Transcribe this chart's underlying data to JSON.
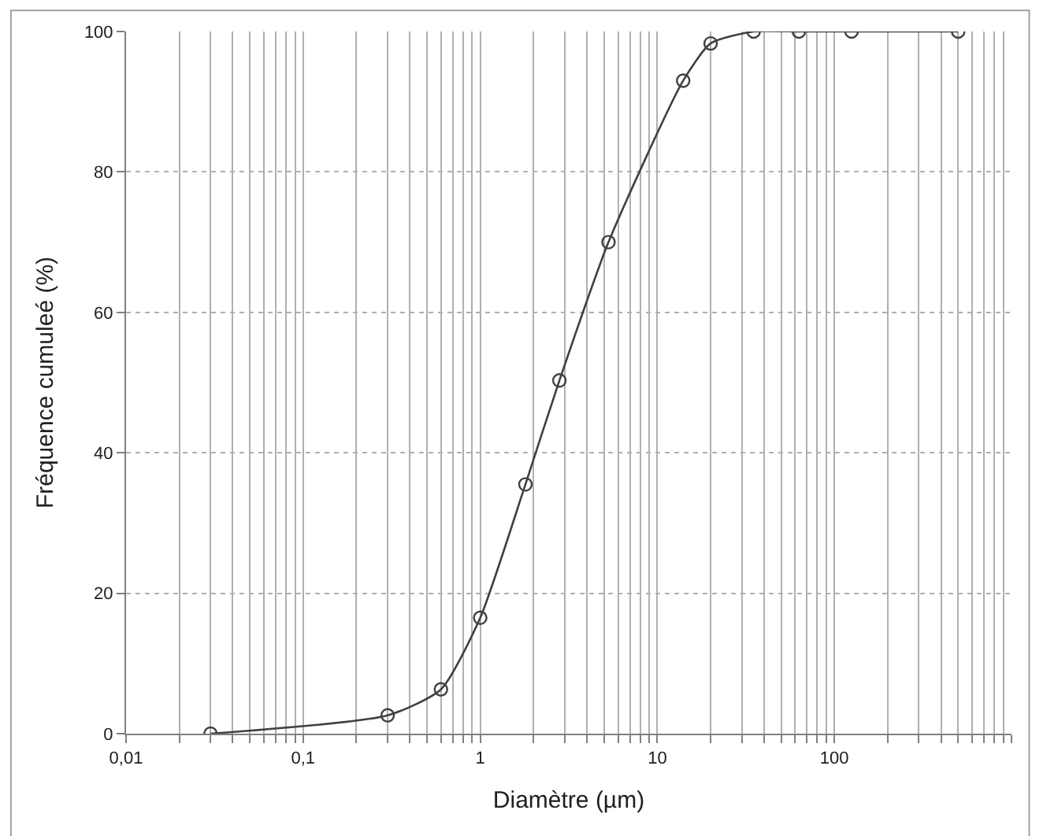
{
  "chart_data": {
    "type": "line",
    "xlabel": "Diamètre (µm)",
    "ylabel": "Fréquence cumuleé (%)",
    "x": [
      0.03,
      0.3,
      0.6,
      1,
      1.8,
      2.8,
      5.3,
      14,
      20,
      35,
      63,
      125,
      500
    ],
    "series": [
      {
        "color": "#404040",
        "values": [
          0,
          2.6,
          6.3,
          16.5,
          35.5,
          50.3,
          70,
          93,
          98.3,
          100,
          100,
          100,
          100
        ]
      }
    ],
    "log": "x",
    "xlim": [
      0.01,
      1000
    ],
    "ylim": [
      0,
      100
    ],
    "xticks": [
      {
        "value": 0.01,
        "label": "0,01"
      },
      {
        "value": 0.02,
        "label": null
      },
      {
        "value": 0.03,
        "label": null
      },
      {
        "value": 0.04,
        "label": null
      },
      {
        "value": 0.05,
        "label": null
      },
      {
        "value": 0.06,
        "label": null
      },
      {
        "value": 0.07,
        "label": null
      },
      {
        "value": 0.08,
        "label": null
      },
      {
        "value": 0.09,
        "label": null
      },
      {
        "value": 0.1,
        "label": "0,1"
      },
      {
        "value": 0.2,
        "label": null
      },
      {
        "value": 0.3,
        "label": null
      },
      {
        "value": 0.4,
        "label": null
      },
      {
        "value": 0.5,
        "label": null
      },
      {
        "value": 0.6,
        "label": null
      },
      {
        "value": 0.7,
        "label": null
      },
      {
        "value": 0.8,
        "label": null
      },
      {
        "value": 0.9,
        "label": null
      },
      {
        "value": 1,
        "label": "1"
      },
      {
        "value": 2,
        "label": null
      },
      {
        "value": 3,
        "label": null
      },
      {
        "value": 4,
        "label": null
      },
      {
        "value": 5,
        "label": null
      },
      {
        "value": 6,
        "label": null
      },
      {
        "value": 7,
        "label": null
      },
      {
        "value": 8,
        "label": null
      },
      {
        "value": 9,
        "label": null
      },
      {
        "value": 10,
        "label": "10"
      },
      {
        "value": 20,
        "label": null
      },
      {
        "value": 30,
        "label": null
      },
      {
        "value": 40,
        "label": null
      },
      {
        "value": 50,
        "label": null
      },
      {
        "value": 60,
        "label": null
      },
      {
        "value": 70,
        "label": null
      },
      {
        "value": 80,
        "label": null
      },
      {
        "value": 90,
        "label": null
      },
      {
        "value": 100,
        "label": "100"
      },
      {
        "value": 200,
        "label": null
      },
      {
        "value": 300,
        "label": null
      },
      {
        "value": 400,
        "label": null
      },
      {
        "value": 500,
        "label": null
      },
      {
        "value": 600,
        "label": null
      },
      {
        "value": 700,
        "label": null
      },
      {
        "value": 800,
        "label": null
      },
      {
        "value": 900,
        "label": null
      },
      {
        "value": 1000,
        "label": null
      }
    ],
    "yticks": [
      0,
      20,
      40,
      60,
      80,
      100
    ],
    "grid": true,
    "marker": "circle",
    "line_style": "solid"
  }
}
